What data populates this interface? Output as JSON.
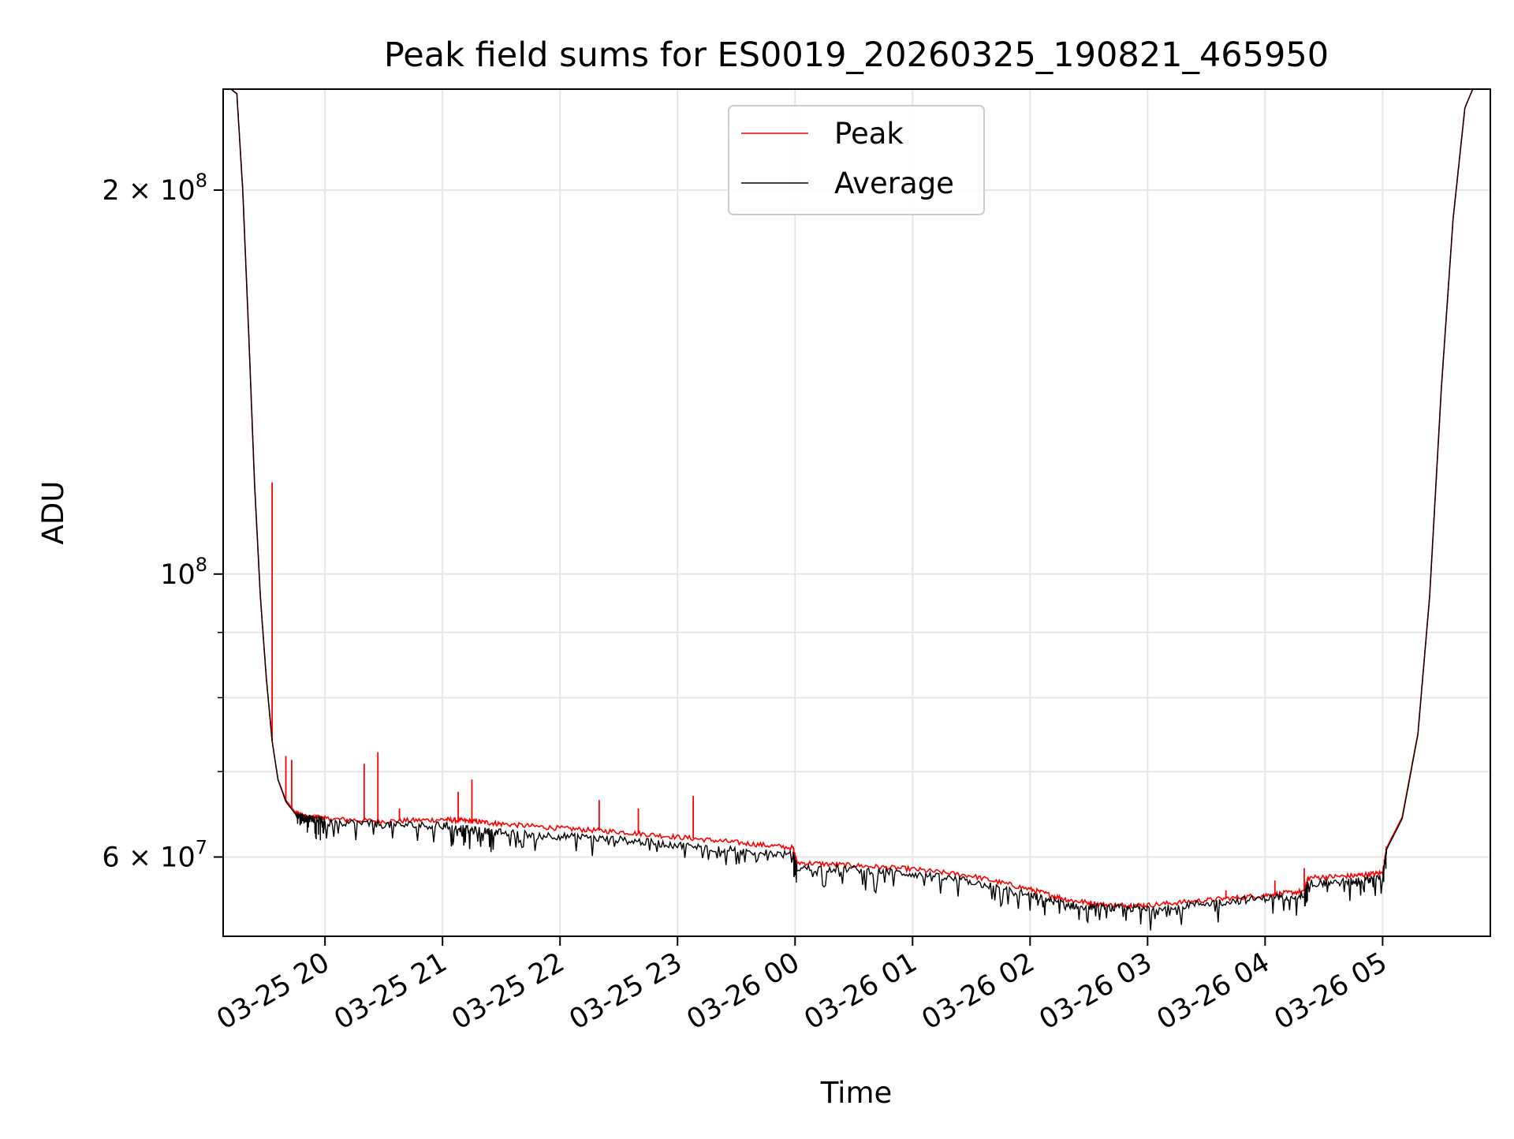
{
  "chart_data": {
    "type": "line",
    "title": "Peak field sums for ES0019_20260325_190821_465950",
    "xlabel": "Time",
    "ylabel": "ADU",
    "y_scale": "log",
    "ylim": [
      52000000,
      240000000
    ],
    "xlim": [
      "2026-03-25 19:08",
      "2026-03-26 05:55"
    ],
    "x_ticks": [
      {
        "value": "2026-03-25 20:00",
        "label": "03-25 20"
      },
      {
        "value": "2026-03-25 21:00",
        "label": "03-25 21"
      },
      {
        "value": "2026-03-25 22:00",
        "label": "03-25 22"
      },
      {
        "value": "2026-03-25 23:00",
        "label": "03-25 23"
      },
      {
        "value": "2026-03-26 00:00",
        "label": "03-26 00"
      },
      {
        "value": "2026-03-26 01:00",
        "label": "03-26 01"
      },
      {
        "value": "2026-03-26 02:00",
        "label": "03-26 02"
      },
      {
        "value": "2026-03-26 03:00",
        "label": "03-26 03"
      },
      {
        "value": "2026-03-26 04:00",
        "label": "03-26 04"
      },
      {
        "value": "2026-03-26 05:00",
        "label": "03-26 05"
      }
    ],
    "y_major_ticks": [
      {
        "value": 100000000,
        "base": "10",
        "exp": "8"
      },
      {
        "value": 200000000,
        "base": "2 × 10",
        "exp": "8"
      },
      {
        "value": 60000000,
        "base": "6 × 10",
        "exp": "7"
      }
    ],
    "y_minor_ticks": [
      70000000,
      80000000,
      90000000
    ],
    "grid": true,
    "legend_position": "top-center",
    "series": [
      {
        "name": "Peak",
        "color": "#ff0000",
        "x": [
          "2026-03-25 19:08",
          "2026-03-25 19:12",
          "2026-03-25 19:15",
          "2026-03-25 19:18",
          "2026-03-25 19:21",
          "2026-03-25 19:24",
          "2026-03-25 19:27",
          "2026-03-25 19:30",
          "2026-03-25 19:33",
          "2026-03-25 19:36",
          "2026-03-25 19:40",
          "2026-03-25 19:45",
          "2026-03-25 19:50",
          "2026-03-25 19:55",
          "2026-03-25 20:00",
          "2026-03-25 20:30",
          "2026-03-25 21:00",
          "2026-03-25 21:15",
          "2026-03-25 21:30",
          "2026-03-25 22:00",
          "2026-03-25 22:30",
          "2026-03-25 23:00",
          "2026-03-25 23:30",
          "2026-03-25 23:59",
          "2026-03-26 00:01",
          "2026-03-26 00:30",
          "2026-03-26 01:00",
          "2026-03-26 01:30",
          "2026-03-26 02:00",
          "2026-03-26 02:20",
          "2026-03-26 02:40",
          "2026-03-26 03:00",
          "2026-03-26 03:30",
          "2026-03-26 04:00",
          "2026-03-26 04:20",
          "2026-03-26 04:22",
          "2026-03-26 04:45",
          "2026-03-26 05:00",
          "2026-03-26 05:02",
          "2026-03-26 05:10",
          "2026-03-26 05:18",
          "2026-03-26 05:24",
          "2026-03-26 05:30",
          "2026-03-26 05:36",
          "2026-03-26 05:42",
          "2026-03-26 05:46",
          "2026-03-26 05:55"
        ],
        "values": [
          240000000,
          240000000,
          238000000,
          200000000,
          155000000,
          118000000,
          96000000,
          83000000,
          74000000,
          69000000,
          66500000,
          65000000,
          64500000,
          64500000,
          64300000,
          64000000,
          64200000,
          64000000,
          63700000,
          63200000,
          62800000,
          62200000,
          61600000,
          61000000,
          59400000,
          59100000,
          58700000,
          58000000,
          56600000,
          55500000,
          55000000,
          55000000,
          55500000,
          56000000,
          56400000,
          57800000,
          58000000,
          58300000,
          61000000,
          64500000,
          75000000,
          96000000,
          140000000,
          190000000,
          232000000,
          240000000,
          240000000
        ],
        "spikes": [
          {
            "x": "2026-03-25 19:33",
            "y": 118000000
          },
          {
            "x": "2026-03-25 19:40",
            "y": 72000000
          },
          {
            "x": "2026-03-25 19:43",
            "y": 71500000
          },
          {
            "x": "2026-03-25 20:20",
            "y": 71000000
          },
          {
            "x": "2026-03-25 20:27",
            "y": 72500000
          },
          {
            "x": "2026-03-25 20:38",
            "y": 65500000
          },
          {
            "x": "2026-03-25 21:08",
            "y": 67500000
          },
          {
            "x": "2026-03-25 21:15",
            "y": 69000000
          },
          {
            "x": "2026-03-25 22:20",
            "y": 66500000
          },
          {
            "x": "2026-03-25 22:40",
            "y": 65500000
          },
          {
            "x": "2026-03-25 23:08",
            "y": 67000000
          },
          {
            "x": "2026-03-26 03:40",
            "y": 56500000
          },
          {
            "x": "2026-03-26 04:05",
            "y": 57500000
          },
          {
            "x": "2026-03-26 04:20",
            "y": 58800000
          }
        ]
      },
      {
        "name": "Average",
        "color": "#000000",
        "x": [
          "2026-03-25 19:08",
          "2026-03-25 19:12",
          "2026-03-25 19:15",
          "2026-03-25 19:18",
          "2026-03-25 19:21",
          "2026-03-25 19:24",
          "2026-03-25 19:27",
          "2026-03-25 19:30",
          "2026-03-25 19:33",
          "2026-03-25 19:36",
          "2026-03-25 19:40",
          "2026-03-25 19:45",
          "2026-03-25 19:50",
          "2026-03-25 19:55",
          "2026-03-25 20:00",
          "2026-03-25 20:30",
          "2026-03-25 21:00",
          "2026-03-25 21:15",
          "2026-03-25 21:30",
          "2026-03-25 22:00",
          "2026-03-25 22:30",
          "2026-03-25 23:00",
          "2026-03-25 23:30",
          "2026-03-25 23:59",
          "2026-03-26 00:01",
          "2026-03-26 00:30",
          "2026-03-26 01:00",
          "2026-03-26 01:30",
          "2026-03-26 02:00",
          "2026-03-26 02:20",
          "2026-03-26 02:40",
          "2026-03-26 03:00",
          "2026-03-26 03:30",
          "2026-03-26 04:00",
          "2026-03-26 04:20",
          "2026-03-26 04:22",
          "2026-03-26 04:45",
          "2026-03-26 05:00",
          "2026-03-26 05:02",
          "2026-03-26 05:10",
          "2026-03-26 05:18",
          "2026-03-26 05:24",
          "2026-03-26 05:30",
          "2026-03-26 05:36",
          "2026-03-26 05:42",
          "2026-03-26 05:46",
          "2026-03-26 05:55"
        ],
        "values": [
          240000000,
          240000000,
          238000000,
          200000000,
          155000000,
          118000000,
          96000000,
          83000000,
          74000000,
          69000000,
          66300000,
          64800000,
          64300000,
          64300000,
          64000000,
          63600000,
          63500000,
          63000000,
          62700000,
          62300000,
          61900000,
          61300000,
          60700000,
          60200000,
          58800000,
          58700000,
          58200000,
          57400000,
          56000000,
          55000000,
          54700000,
          54700000,
          55200000,
          55700000,
          56000000,
          57200000,
          57400000,
          57800000,
          60800000,
          64300000,
          74800000,
          96000000,
          140000000,
          190000000,
          232000000,
          240000000,
          240000000
        ]
      }
    ]
  }
}
